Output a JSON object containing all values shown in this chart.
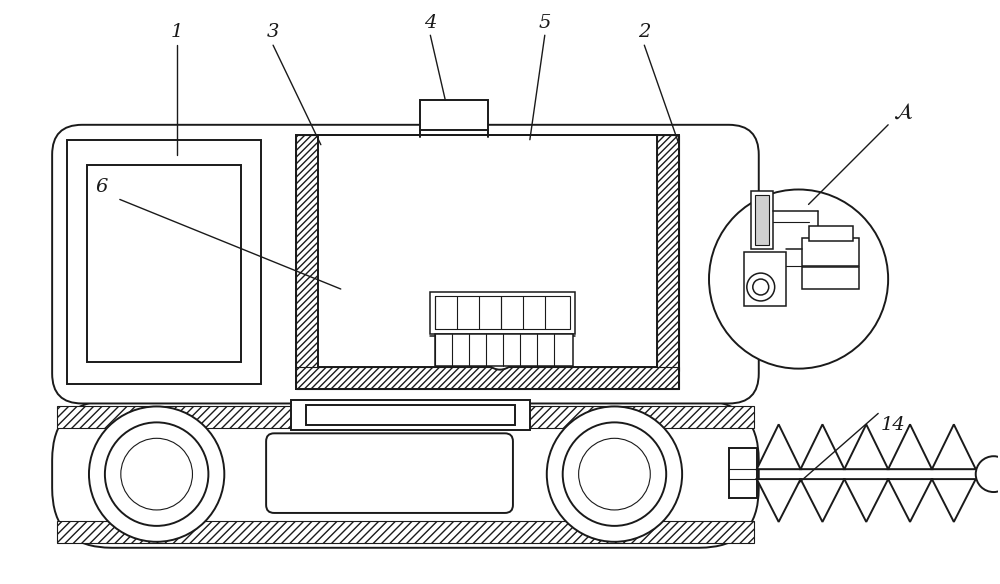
{
  "bg_color": "#ffffff",
  "line_color": "#1a1a1a",
  "lw": 1.4,
  "lw_thin": 0.8,
  "lw_med": 1.1
}
